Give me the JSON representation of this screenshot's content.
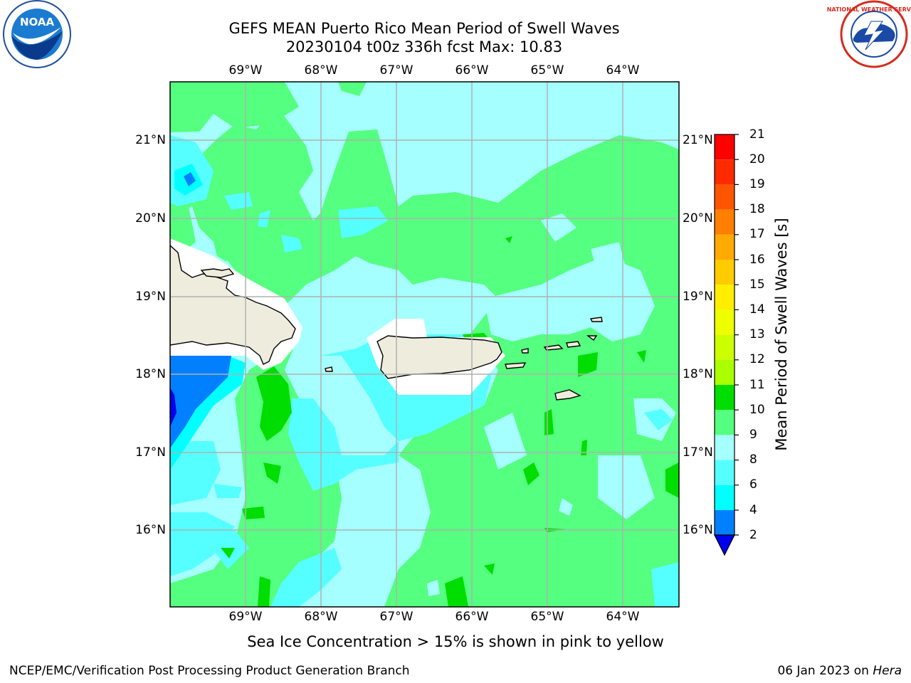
{
  "title": {
    "line1": "GEFS MEAN Puerto Rico Mean Period of Swell Waves",
    "line2": "20230104 t00z 336h fcst   Max: 10.83"
  },
  "map": {
    "lon_labels": [
      "69°W",
      "68°W",
      "67°W",
      "66°W",
      "65°W",
      "64°W"
    ],
    "lat_labels": [
      "21°N",
      "20°N",
      "19°N",
      "18°N",
      "17°N",
      "16°N"
    ],
    "extent": {
      "lon_min": -70.0,
      "lon_max": -63.25,
      "lat_min": 15.0,
      "lat_max": 21.75
    },
    "land_color": "#eeecdc",
    "ocean_base_color": "#a6ffff",
    "gridline_color": "#b0b0b0"
  },
  "colorbar": {
    "title": "Mean Period of Swell Waves [s]",
    "levels": [
      "21",
      "20",
      "19",
      "18",
      "17",
      "16",
      "15",
      "14",
      "13",
      "12",
      "11",
      "10",
      "9",
      "8",
      "6",
      "4",
      "2"
    ],
    "colors": [
      "#ff0000",
      "#ff2a00",
      "#ff5500",
      "#ff7f00",
      "#ffaa00",
      "#ffcc00",
      "#ffee00",
      "#eeff00",
      "#ccff00",
      "#aaff00",
      "#55dd00",
      "#00dd00",
      "#55ff7f",
      "#a6ffff",
      "#55ffff",
      "#00ffff",
      "#0080ff"
    ],
    "under_color": "#0000ee"
  },
  "footer": {
    "note": "Sea Ice Concentration > 15% is shown in pink to yellow",
    "producer": "NCEP/EMC/Verification Post Processing Product Generation Branch",
    "date": "06 Jan 2023 on",
    "machine": "Hera"
  },
  "logos": {
    "left_icon": "noaa-logo-icon",
    "left_text": "NOAA",
    "right_icon": "nws-logo-icon",
    "right_text": "NATIONAL WEATHER SERVICE"
  }
}
